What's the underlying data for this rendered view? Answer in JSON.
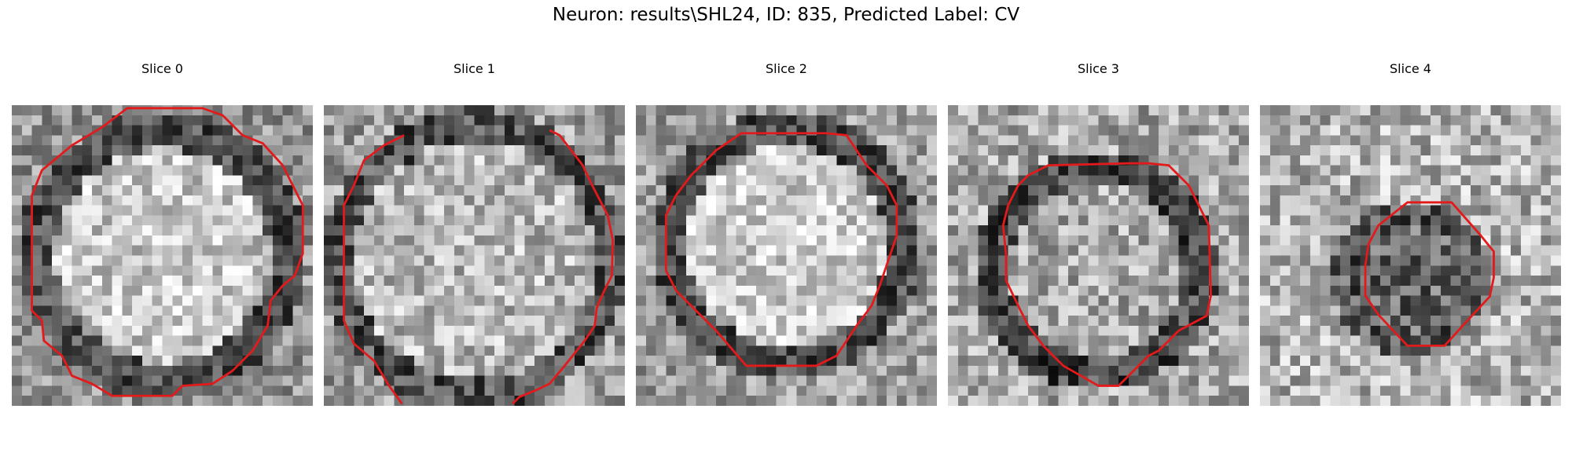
{
  "figure": {
    "title": "Neuron: results\\SHL24, ID: 835, Predicted Label: CV"
  },
  "panels": [
    {
      "title": "Slice 0"
    },
    {
      "title": "Slice 1"
    },
    {
      "title": "Slice 2"
    },
    {
      "title": "Slice 3"
    },
    {
      "title": "Slice 4"
    }
  ],
  "colors": {
    "contour": "#e31a1c",
    "background": "#ffffff"
  },
  "image": {
    "colormap": "grayscale",
    "grid": "noisy pixel patch with red segmentation contour"
  }
}
